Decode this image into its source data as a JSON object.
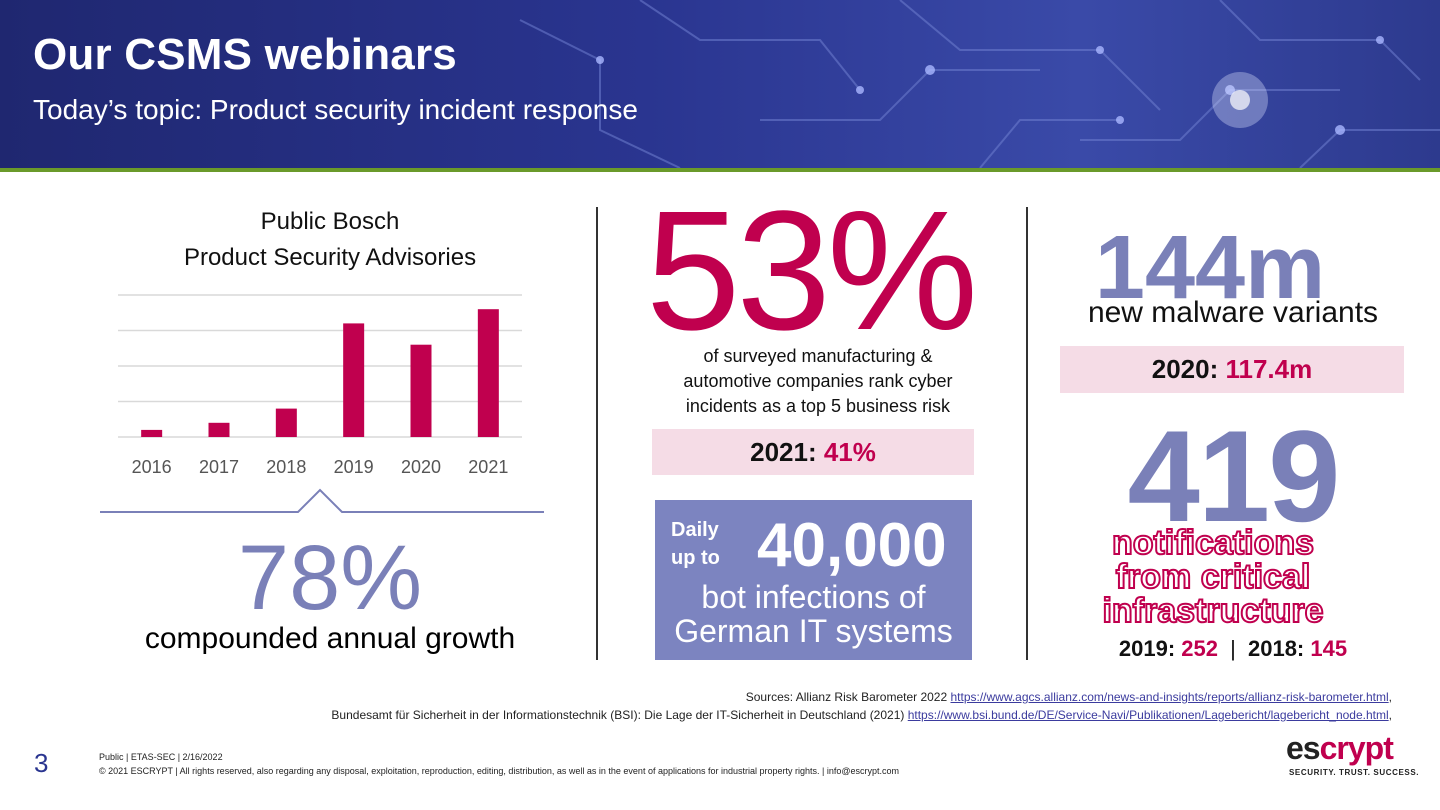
{
  "header": {
    "title": "Our CSMS webinars",
    "subtitle": "Today’s topic: Product security incident response"
  },
  "left": {
    "chart_title_line1": "Public Bosch",
    "chart_title_line2": "Product Security Advisories",
    "big_value": "78%",
    "big_caption": "compounded annual growth"
  },
  "chart_data": {
    "type": "bar",
    "categories": [
      "2016",
      "2017",
      "2018",
      "2019",
      "2020",
      "2021"
    ],
    "values": [
      2,
      4,
      8,
      32,
      26,
      36
    ],
    "title": "Public Bosch Product Security Advisories",
    "xlabel": "",
    "ylabel": "",
    "ylim": [
      0,
      40
    ],
    "grid": true,
    "bar_color": "#c0004e"
  },
  "middle": {
    "big_value": "53%",
    "desc_line1": "of surveyed manufacturing &",
    "desc_line2": "automotive companies rank cyber",
    "desc_line3": "incidents as a top 5 business risk",
    "prev_label": "2021:",
    "prev_value": "41%",
    "bot_daily_line1": "Daily",
    "bot_daily_line2": "up to",
    "bot_number": "40,000",
    "bot_text_line1": "bot infections of",
    "bot_text_line2": "German IT systems"
  },
  "right": {
    "big_value": "144m",
    "big_caption": "new malware variants",
    "prev_label": "2020:",
    "prev_value": "117.4m",
    "notif_value": "419",
    "notif_line1": "notifications",
    "notif_line2": "from critical",
    "notif_line3": "infrastructure",
    "y2019_label": "2019:",
    "y2019_value": "252",
    "separator": "|",
    "y2018_label": "2018:",
    "y2018_value": "145"
  },
  "sources": {
    "line1_text": "Sources: Allianz Risk Barometer 2022 ",
    "line1_link": "https://www.agcs.allianz.com/news-and-insights/reports/allianz-risk-barometer.html",
    "line1_end": ",",
    "line2_text": "Bundesamt für Sicherheit in der Informationstechnik (BSI): Die Lage der IT-Sicherheit in Deutschland (2021) ",
    "line2_link": "https://www.bsi.bund.de/DE/Service-Navi/Publikationen/Lagebericht/lagebericht_node.html",
    "line2_end": ","
  },
  "footer": {
    "page_number": "3",
    "classification": "Public | ETAS-SEC | 2/16/2022",
    "copyright": "© 2021 ESCRYPT | All rights reserved, also regarding any disposal, exploitation, reproduction, editing, distribution, as well as in the event of applications for industrial property rights. | info@escrypt.com",
    "logo_part1": "es",
    "logo_part2": "crypt",
    "tagline": "SECURITY. TRUST. SUCCESS."
  },
  "colors": {
    "brand_navy": "#2a3590",
    "accent_magenta": "#c0004e",
    "stat_lavender": "#7a80b8",
    "highlight_pink": "#f5dce6",
    "rule_green": "#6a9a2a"
  }
}
